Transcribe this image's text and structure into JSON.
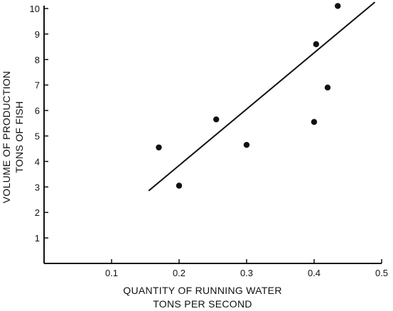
{
  "chart_data": {
    "type": "scatter",
    "title": "",
    "xlabel_lines": [
      "QUANTITY OF RUNNING WATER",
      "TONS PER SECOND"
    ],
    "ylabel_lines": [
      "VOLUME OF PRODUCTION",
      "TONS OF FISH"
    ],
    "xlim": [
      0,
      0.5
    ],
    "ylim": [
      0,
      10
    ],
    "x_ticks": [
      0.1,
      0.2,
      0.3,
      0.4,
      0.5
    ],
    "x_tick_labels": [
      "0.1",
      "0.2",
      "0.3",
      "0.4",
      "0.5"
    ],
    "y_ticks": [
      1,
      2,
      3,
      4,
      5,
      6,
      7,
      8,
      9,
      10
    ],
    "y_tick_labels": [
      "1",
      "2",
      "3",
      "4",
      "5",
      "6",
      "7",
      "8",
      "9",
      "10"
    ],
    "grid": false,
    "series": [
      {
        "points": [
          {
            "x": 0.17,
            "y": 4.55
          },
          {
            "x": 0.2,
            "y": 3.05
          },
          {
            "x": 0.255,
            "y": 5.65
          },
          {
            "x": 0.3,
            "y": 4.65
          },
          {
            "x": 0.4,
            "y": 5.55
          },
          {
            "x": 0.403,
            "y": 8.6
          },
          {
            "x": 0.42,
            "y": 6.9
          },
          {
            "x": 0.435,
            "y": 10.1
          }
        ],
        "color": "#111111"
      }
    ],
    "trend_line": {
      "x": [
        0.155,
        0.49
      ],
      "y": [
        2.85,
        10.25
      ]
    }
  }
}
